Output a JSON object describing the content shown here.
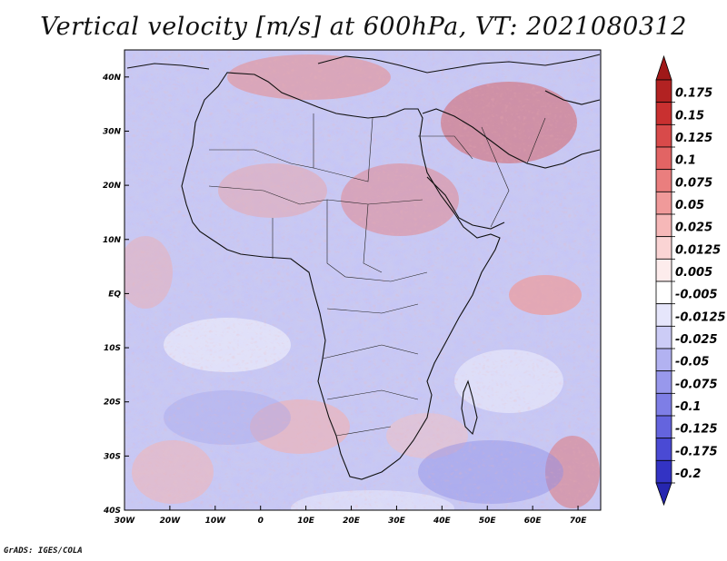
{
  "title": "Vertical velocity [m/s] at 600hPa, VT: 2021080312",
  "credit": "GrADS: IGES/COLA",
  "map": {
    "lon_range": [
      -30,
      75
    ],
    "lat_range": [
      -40,
      45
    ],
    "lon_ticks": [
      {
        "value": -30,
        "label": "30W"
      },
      {
        "value": -20,
        "label": "20W"
      },
      {
        "value": -10,
        "label": "10W"
      },
      {
        "value": 0,
        "label": "0"
      },
      {
        "value": 10,
        "label": "10E"
      },
      {
        "value": 20,
        "label": "20E"
      },
      {
        "value": 30,
        "label": "30E"
      },
      {
        "value": 40,
        "label": "40E"
      },
      {
        "value": 50,
        "label": "50E"
      },
      {
        "value": 60,
        "label": "60E"
      },
      {
        "value": 70,
        "label": "70E"
      }
    ],
    "lat_ticks": [
      {
        "value": 40,
        "label": "40N"
      },
      {
        "value": 30,
        "label": "30N"
      },
      {
        "value": 20,
        "label": "20N"
      },
      {
        "value": 10,
        "label": "10N"
      },
      {
        "value": 0,
        "label": "EQ"
      },
      {
        "value": -10,
        "label": "10S"
      },
      {
        "value": -20,
        "label": "20S"
      },
      {
        "value": -30,
        "label": "30S"
      },
      {
        "value": -40,
        "label": "40S"
      }
    ]
  },
  "colorbar": {
    "levels": [
      {
        "label": "0.175",
        "color": "#b22222"
      },
      {
        "label": "0.15",
        "color": "#c93030"
      },
      {
        "label": "0.125",
        "color": "#d84a4a"
      },
      {
        "label": "0.1",
        "color": "#e26464"
      },
      {
        "label": "0.075",
        "color": "#ea7e7e"
      },
      {
        "label": "0.05",
        "color": "#f09a9a"
      },
      {
        "label": "0.025",
        "color": "#f6b8b8"
      },
      {
        "label": "0.0125",
        "color": "#fad4d4"
      },
      {
        "label": "0.005",
        "color": "#fdecec"
      },
      {
        "label": "-0.005",
        "color": "#ffffff"
      },
      {
        "label": "-0.0125",
        "color": "#e6e6fb"
      },
      {
        "label": "-0.025",
        "color": "#ccccf6"
      },
      {
        "label": "-0.05",
        "color": "#b2b2f1"
      },
      {
        "label": "-0.075",
        "color": "#9898ec"
      },
      {
        "label": "-0.1",
        "color": "#7e7ee6"
      },
      {
        "label": "-0.125",
        "color": "#6464de"
      },
      {
        "label": "-0.175",
        "color": "#4a4ad4"
      },
      {
        "label": "-0.2",
        "color": "#3333c4"
      }
    ],
    "top_color": "#a01818",
    "bottom_color": "#2626b0"
  }
}
